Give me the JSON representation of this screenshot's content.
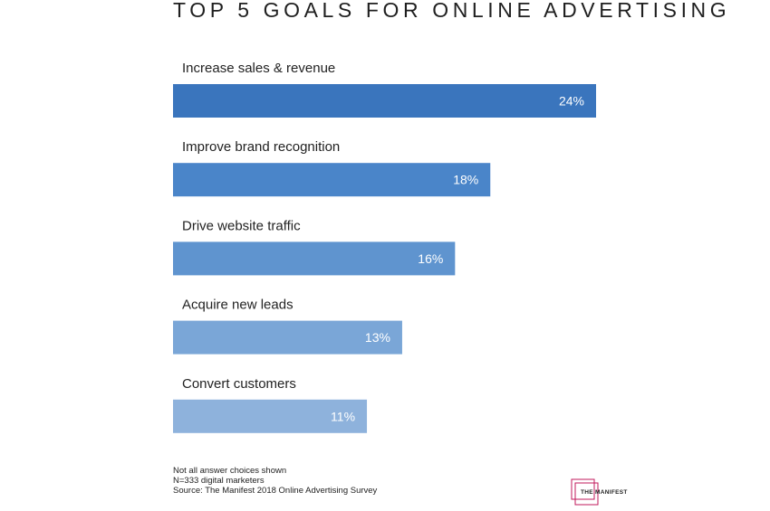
{
  "chart_data": {
    "type": "bar",
    "orientation": "horizontal",
    "title": "TOP 5 GOALS FOR ONLINE ADVERTISING",
    "categories": [
      "Increase sales & revenue",
      "Improve brand recognition",
      "Drive website traffic",
      "Acquire new leads",
      "Convert customers"
    ],
    "values": [
      24,
      18,
      16,
      13,
      11
    ],
    "value_labels": [
      "24%",
      "18%",
      "16%",
      "13%",
      "11%"
    ],
    "colors": [
      "#3a75bd",
      "#4a85c9",
      "#5f94cf",
      "#7aa6d7",
      "#8eb2dc"
    ],
    "xlim": [
      0,
      24
    ],
    "grid": false,
    "legend": "none"
  },
  "footer": {
    "notes": [
      "Not all answer choices shown",
      "N=333 digital marketers",
      "Source: The Manifest 2018 Online Advertising Survey"
    ]
  },
  "logo": {
    "text": "THE MANIFEST",
    "color": "#c2185b"
  }
}
